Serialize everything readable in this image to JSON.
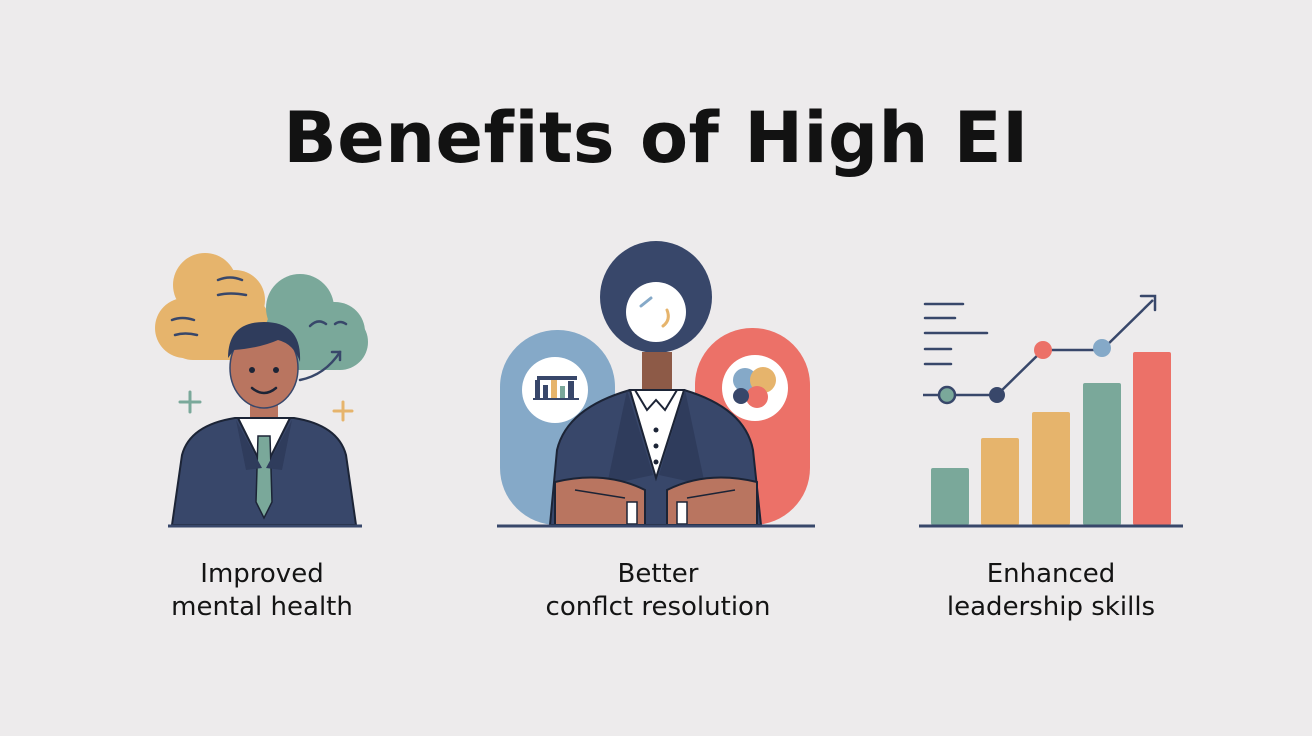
{
  "title": "Benefits of High EI",
  "colors": {
    "background": "#edebec",
    "navy": "#38476a",
    "teal": "#7aa89a",
    "yellow": "#e6b46c",
    "coral": "#ec7168",
    "skin": "#b97560",
    "blue": "#85a9c8"
  },
  "benefits": [
    {
      "id": "mental-health",
      "illustration": "person-with-thought-clouds",
      "caption_line1": "Improved",
      "caption_line2": "mental health"
    },
    {
      "id": "conflict-resolution",
      "illustration": "person-with-dialogue-bubbles",
      "caption_line1": "Better",
      "caption_line2": "conflct resolution"
    },
    {
      "id": "leadership",
      "illustration": "rising-bar-chart-with-trend-arrow",
      "caption_line1": "Enhanced",
      "caption_line2": "leadership skills"
    }
  ]
}
